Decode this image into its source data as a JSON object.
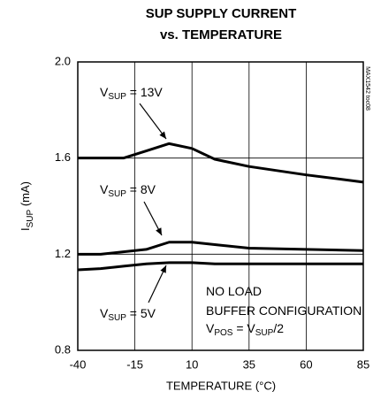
{
  "chart_data": {
    "type": "line",
    "title": [
      "SUP SUPPLY CURRENT",
      "vs. TEMPERATURE"
    ],
    "code": "MAX1542 toc08",
    "xlabel": "TEMPERATURE (°C)",
    "ylabel": [
      {
        "text": "I"
      },
      {
        "text": "SUP",
        "sub": true
      },
      {
        "text": " (mA)"
      }
    ],
    "x": [
      -40,
      -30,
      -20,
      -10,
      0,
      10,
      20,
      35,
      60,
      85
    ],
    "series": [
      {
        "name": "13V",
        "color": "#000000",
        "values": [
          1.6,
          1.6,
          1.6,
          1.63,
          1.66,
          1.64,
          1.595,
          1.565,
          1.53,
          1.5
        ]
      },
      {
        "name": "8V",
        "color": "#000000",
        "values": [
          1.2,
          1.2,
          1.21,
          1.22,
          1.25,
          1.25,
          1.24,
          1.225,
          1.22,
          1.215
        ]
      },
      {
        "name": "5V",
        "color": "#000000",
        "values": [
          1.135,
          1.14,
          1.15,
          1.16,
          1.165,
          1.165,
          1.16,
          1.16,
          1.16,
          1.16
        ]
      }
    ],
    "annotations": [
      [
        {
          "text": "V"
        },
        {
          "text": "SUP",
          "sub": true
        },
        {
          "text": " = 13V"
        }
      ],
      [
        {
          "text": "V"
        },
        {
          "text": "SUP",
          "sub": true
        },
        {
          "text": " = 8V"
        }
      ],
      [
        {
          "text": "V"
        },
        {
          "text": "SUP",
          "sub": true
        },
        {
          "text": " = 5V"
        }
      ],
      [
        {
          "text": "NO LOAD"
        }
      ],
      [
        {
          "text": "BUFFER CONFIGURATION"
        }
      ],
      [
        {
          "text": "V"
        },
        {
          "text": "POS",
          "sub": true
        },
        {
          "text": " = V"
        },
        {
          "text": "SUP",
          "sub": true
        },
        {
          "text": "/2"
        }
      ]
    ],
    "xlim": [
      -40,
      85
    ],
    "xticks": [
      -40,
      -15,
      10,
      35,
      60,
      85
    ],
    "ylim": [
      0.8,
      2.0
    ],
    "yticks": [
      {
        "value": 0.8,
        "label": "0.8"
      },
      {
        "value": 1.2,
        "label": "1.2"
      },
      {
        "value": 1.6,
        "label": "1.6"
      },
      {
        "value": 2.0,
        "label": "2.0"
      }
    ],
    "grid": true
  }
}
